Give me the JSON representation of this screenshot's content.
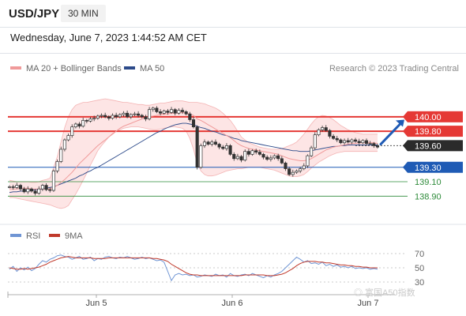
{
  "header": {
    "pair": "USD/JPY",
    "timeframe": "30 MIN",
    "datetime": "Wednesday, June 7, 2023 1:44:52 AM CET"
  },
  "colors": {
    "bollinger": "#f09a9a",
    "band_fill": "#fde2e2",
    "ma50": "#2c4a8a",
    "resistance": "#e53935",
    "support_blue": "#1f5bb5",
    "support_green": "#2e8b3a",
    "candle": "#333333",
    "rsi_line": "#6f95d4",
    "rsi_ma": "#c0392b",
    "arrow": "#1f5bb5"
  },
  "chart_data": [
    {
      "type": "line",
      "title": "",
      "legend": [
        {
          "name": "MA 20 + Bollinger Bands",
          "color": "#f09a9a"
        },
        {
          "name": "MA 50",
          "color": "#2c4a8a"
        }
      ],
      "legend_position": "top-left",
      "source": "Research © 2023 Trading Central",
      "x_ticks": [
        "Jun 5",
        "Jun 6",
        "Jun 7"
      ],
      "ylim": [
        138.75,
        140.25
      ],
      "grid": false,
      "levels": [
        {
          "value": 140.0,
          "label": "140.00",
          "style": "resistance"
        },
        {
          "value": 139.8,
          "label": "139.80",
          "style": "resistance"
        },
        {
          "value": 139.6,
          "label": "139.60",
          "style": "current"
        },
        {
          "value": 139.3,
          "label": "139.30",
          "style": "support_blue"
        },
        {
          "value": 139.1,
          "label": "139.10",
          "style": "support_green"
        },
        {
          "value": 138.9,
          "label": "138.90",
          "style": "support_green"
        }
      ],
      "series": [
        {
          "name": "price",
          "values": [
            139.03,
            139.02,
            139.05,
            139.0,
            138.96,
            139.0,
            138.97,
            138.94,
            139.0,
            139.05,
            138.99,
            138.98,
            139.25,
            139.38,
            139.55,
            139.68,
            139.74,
            139.86,
            139.9,
            139.87,
            139.95,
            139.94,
            139.97,
            139.98,
            140.01,
            140.02,
            140.0,
            139.98,
            140.02,
            140.0,
            140.03,
            140.05,
            140.0,
            140.03,
            140.04,
            140.02,
            140.0,
            139.97,
            140.1,
            140.12,
            140.07,
            140.05,
            140.08,
            140.06,
            140.1,
            140.05,
            140.09,
            140.07,
            140.04,
            139.96,
            139.86,
            139.3,
            139.6,
            139.65,
            139.62,
            139.65,
            139.62,
            139.58,
            139.56,
            139.6,
            139.48,
            139.42,
            139.45,
            139.4,
            139.52,
            139.48,
            139.53,
            139.51,
            139.48,
            139.44,
            139.41,
            139.43,
            139.46,
            139.42,
            139.36,
            139.28,
            139.2,
            139.23,
            139.25,
            139.28,
            139.32,
            139.46,
            139.57,
            139.75,
            139.82,
            139.85,
            139.81,
            139.73,
            139.7,
            139.68,
            139.64,
            139.67,
            139.65,
            139.68,
            139.66,
            139.64,
            139.67,
            139.63,
            139.63,
            139.6,
            139.58
          ]
        },
        {
          "name": "MA 20",
          "values": [
            139.0,
            139.0,
            139.0,
            139.01,
            139.01,
            139.01,
            139.0,
            139.0,
            139.0,
            139.0,
            139.0,
            139.0,
            139.02,
            139.05,
            139.09,
            139.13,
            139.18,
            139.23,
            139.29,
            139.35,
            139.4,
            139.45,
            139.5,
            139.55,
            139.6,
            139.64,
            139.68,
            139.72,
            139.76,
            139.8,
            139.84,
            139.87,
            139.89,
            139.91,
            139.93,
            139.95,
            139.97,
            139.99,
            140.0,
            140.01,
            140.02,
            140.03,
            140.04,
            140.04,
            140.05,
            140.05,
            140.06,
            140.06,
            140.05,
            140.04,
            140.02,
            139.97,
            139.95,
            139.92,
            139.89,
            139.86,
            139.83,
            139.8,
            139.77,
            139.74,
            139.71,
            139.67,
            139.63,
            139.6,
            139.58,
            139.56,
            139.55,
            139.54,
            139.53,
            139.52,
            139.51,
            139.5,
            139.49,
            139.48,
            139.46,
            139.44,
            139.42,
            139.41,
            139.4,
            139.39,
            139.39,
            139.4,
            139.42,
            139.45,
            139.48,
            139.51,
            139.54,
            139.56,
            139.58,
            139.59,
            139.6,
            139.61,
            139.62,
            139.63,
            139.63,
            139.64,
            139.64,
            139.64,
            139.64,
            139.64,
            139.63
          ]
        },
        {
          "name": "Upper Band",
          "values": [
            139.12,
            139.11,
            139.1,
            139.1,
            139.1,
            139.1,
            139.09,
            139.09,
            139.1,
            139.12,
            139.13,
            139.15,
            139.3,
            139.45,
            139.65,
            139.85,
            140.0,
            140.1,
            140.16,
            140.18,
            140.2,
            140.2,
            140.21,
            140.22,
            140.23,
            140.24,
            140.25,
            140.24,
            140.23,
            140.22,
            140.21,
            140.2,
            140.2,
            140.19,
            140.18,
            140.17,
            140.17,
            140.16,
            140.16,
            140.17,
            140.18,
            140.19,
            140.19,
            140.2,
            140.21,
            140.22,
            140.22,
            140.22,
            140.21,
            140.2,
            140.2,
            140.2,
            140.19,
            140.18,
            140.16,
            140.14,
            140.12,
            140.09,
            140.05,
            140.0,
            139.95,
            139.88,
            139.8,
            139.72,
            139.68,
            139.64,
            139.62,
            139.6,
            139.58,
            139.57,
            139.56,
            139.55,
            139.55,
            139.55,
            139.56,
            139.58,
            139.6,
            139.62,
            139.65,
            139.7,
            139.76,
            139.83,
            139.9,
            139.96,
            140.0,
            140.02,
            140.01,
            139.99,
            139.96,
            139.92,
            139.88,
            139.85,
            139.82,
            139.8,
            139.78,
            139.77,
            139.76,
            139.76,
            139.76,
            139.76,
            139.76
          ]
        },
        {
          "name": "Lower Band",
          "values": [
            138.88,
            138.88,
            138.87,
            138.86,
            138.85,
            138.84,
            138.83,
            138.82,
            138.81,
            138.8,
            138.79,
            138.78,
            138.76,
            138.74,
            138.73,
            138.74,
            138.77,
            138.85,
            138.93,
            139.02,
            139.12,
            139.22,
            139.33,
            139.43,
            139.53,
            139.6,
            139.66,
            139.72,
            139.77,
            139.8,
            139.82,
            139.84,
            139.85,
            139.86,
            139.86,
            139.86,
            139.85,
            139.84,
            139.83,
            139.82,
            139.82,
            139.83,
            139.84,
            139.85,
            139.86,
            139.86,
            139.85,
            139.84,
            139.8,
            139.7,
            139.55,
            139.35,
            139.25,
            139.2,
            139.18,
            139.18,
            139.19,
            139.21,
            139.23,
            139.25,
            139.26,
            139.27,
            139.28,
            139.28,
            139.29,
            139.3,
            139.3,
            139.3,
            139.3,
            139.29,
            139.28,
            139.27,
            139.26,
            139.24,
            139.22,
            139.2,
            139.18,
            139.17,
            139.17,
            139.18,
            139.2,
            139.24,
            139.29,
            139.33,
            139.37,
            139.4,
            139.43,
            139.46,
            139.48,
            139.5,
            139.51,
            139.52,
            139.52,
            139.52,
            139.52,
            139.52,
            139.52,
            139.52,
            139.52,
            139.52,
            139.52
          ]
        },
        {
          "name": "MA 50",
          "values": [
            138.95,
            138.96,
            138.96,
            138.97,
            138.97,
            138.98,
            138.98,
            138.99,
            138.99,
            139.0,
            139.01,
            139.02,
            139.03,
            139.05,
            139.07,
            139.09,
            139.11,
            139.13,
            139.15,
            139.18,
            139.2,
            139.23,
            139.25,
            139.28,
            139.3,
            139.33,
            139.36,
            139.39,
            139.42,
            139.45,
            139.48,
            139.51,
            139.54,
            139.57,
            139.6,
            139.63,
            139.66,
            139.69,
            139.72,
            139.75,
            139.78,
            139.8,
            139.83,
            139.85,
            139.87,
            139.89,
            139.9,
            139.91,
            139.91,
            139.9,
            139.89,
            139.87,
            139.85,
            139.84,
            139.82,
            139.8,
            139.79,
            139.77,
            139.75,
            139.74,
            139.72,
            139.7,
            139.69,
            139.67,
            139.66,
            139.65,
            139.64,
            139.63,
            139.62,
            139.61,
            139.6,
            139.59,
            139.58,
            139.57,
            139.56,
            139.55,
            139.54,
            139.53,
            139.53,
            139.52,
            139.52,
            139.52,
            139.53,
            139.54,
            139.55,
            139.56,
            139.57,
            139.58,
            139.59,
            139.59,
            139.6,
            139.6,
            139.61,
            139.61,
            139.61,
            139.61,
            139.61,
            139.61,
            139.61,
            139.61,
            139.61
          ]
        }
      ],
      "arrow": {
        "from": 139.62,
        "to": 139.96,
        "direction": "up"
      }
    },
    {
      "type": "line",
      "title": "",
      "legend": [
        {
          "name": "RSI",
          "color": "#6f95d4"
        },
        {
          "name": "9MA",
          "color": "#c0392b"
        }
      ],
      "legend_position": "top-left",
      "ylim": [
        25,
        75
      ],
      "y_ticks": [
        "70",
        "50",
        "30"
      ],
      "x_ticks": [
        "Jun 5",
        "Jun 6",
        "Jun 7"
      ],
      "series": [
        {
          "name": "RSI",
          "values": [
            48,
            52,
            45,
            50,
            47,
            51,
            46,
            49,
            55,
            60,
            58,
            62,
            64,
            67,
            68,
            66,
            65,
            62,
            64,
            66,
            62,
            63,
            65,
            60,
            63,
            62,
            65,
            66,
            64,
            63,
            65,
            64,
            66,
            64,
            62,
            63,
            65,
            63,
            64,
            62,
            60,
            61,
            58,
            45,
            32,
            40,
            42,
            40,
            41,
            39,
            40,
            37,
            38,
            40,
            39,
            38,
            41,
            39,
            40,
            37,
            42,
            39,
            38,
            40,
            41,
            39,
            42,
            40,
            38,
            36,
            39,
            37,
            40,
            42,
            45,
            50,
            55,
            60,
            65,
            62,
            58,
            60,
            56,
            57,
            55,
            58,
            53,
            55,
            52,
            54,
            51,
            52,
            50,
            52,
            49,
            50,
            49,
            50,
            48,
            49,
            48
          ]
        },
        {
          "name": "9MA",
          "values": [
            50,
            49,
            48,
            48,
            49,
            48,
            49,
            50,
            51,
            53,
            55,
            58,
            60,
            62,
            64,
            65,
            66,
            65,
            64,
            64,
            64,
            64,
            64,
            63,
            63,
            63,
            63,
            64,
            64,
            64,
            64,
            64,
            64,
            64,
            64,
            64,
            64,
            64,
            64,
            63,
            63,
            62,
            61,
            59,
            55,
            52,
            49,
            46,
            43,
            41,
            40,
            40,
            39,
            39,
            39,
            39,
            39,
            39,
            39,
            39,
            39,
            39,
            39,
            39,
            40,
            40,
            40,
            40,
            40,
            40,
            39,
            39,
            39,
            40,
            41,
            43,
            46,
            49,
            53,
            56,
            58,
            59,
            59,
            59,
            58,
            58,
            57,
            57,
            56,
            55,
            54,
            54,
            53,
            53,
            52,
            52,
            51,
            51,
            50,
            50,
            50
          ]
        }
      ]
    }
  ]
}
